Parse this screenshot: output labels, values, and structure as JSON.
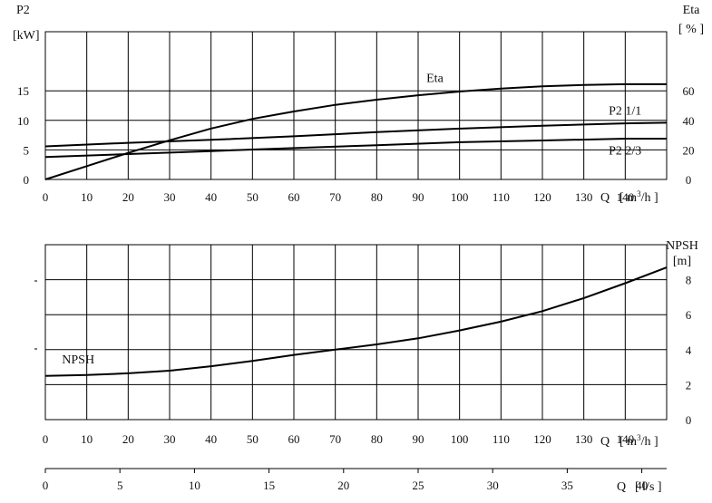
{
  "chart_data": [
    {
      "type": "line",
      "name": "power-efficiency",
      "left_axis": {
        "title": "P2",
        "unit": "[kW]",
        "range": [
          0,
          25
        ],
        "ticks": [
          0,
          5,
          10,
          15
        ]
      },
      "right_axis": {
        "title": "Eta",
        "unit": "[ % ]",
        "range": [
          0,
          100
        ],
        "ticks": [
          0,
          20,
          40,
          60
        ]
      },
      "x_axis": {
        "label_prefix": "Q",
        "label_unit": "[ m³/h ]",
        "range": [
          0,
          150
        ],
        "ticks": [
          0,
          10,
          20,
          30,
          40,
          50,
          60,
          70,
          80,
          90,
          100,
          110,
          120,
          130,
          140
        ]
      },
      "grid": true,
      "series": [
        {
          "name": "Eta",
          "axis": "right",
          "x": [
            0,
            10,
            20,
            30,
            40,
            50,
            60,
            70,
            80,
            90,
            100,
            110,
            120,
            130,
            140,
            150
          ],
          "y": [
            0,
            9,
            18,
            26.5,
            34.5,
            41,
            46,
            50.5,
            54,
            57,
            59.5,
            61.5,
            63,
            64,
            64.5,
            64.5
          ]
        },
        {
          "name": "P2  1/1",
          "axis": "left",
          "x": [
            0,
            20,
            40,
            60,
            80,
            100,
            120,
            140,
            150
          ],
          "y": [
            5.6,
            6.2,
            6.7,
            7.3,
            8.0,
            8.6,
            9.1,
            9.5,
            9.6
          ]
        },
        {
          "name": "P2  2/3",
          "axis": "left",
          "x": [
            0,
            20,
            40,
            60,
            80,
            100,
            120,
            140,
            150
          ],
          "y": [
            3.8,
            4.3,
            4.8,
            5.3,
            5.8,
            6.3,
            6.6,
            6.9,
            6.9
          ]
        }
      ]
    },
    {
      "type": "line",
      "name": "npsh",
      "right_axis": {
        "title": "NPSH",
        "unit": "[m]",
        "range": [
          0,
          10
        ],
        "ticks": [
          0,
          2,
          4,
          6,
          8
        ]
      },
      "x_axis": {
        "label_prefix": "Q",
        "label_unit": "[ m³/h ]",
        "range": [
          0,
          150
        ],
        "ticks": [
          0,
          10,
          20,
          30,
          40,
          50,
          60,
          70,
          80,
          90,
          100,
          110,
          120,
          130,
          140
        ]
      },
      "second_x_axis": {
        "label_prefix": "Q",
        "label_unit": "[ l/s ]",
        "range": [
          0,
          41.667
        ],
        "ticks": [
          0,
          5,
          10,
          15,
          20,
          25,
          30,
          35,
          40
        ]
      },
      "grid": true,
      "series": [
        {
          "name": "NPSH",
          "x": [
            0,
            10,
            20,
            30,
            40,
            50,
            60,
            70,
            80,
            90,
            100,
            110,
            120,
            130,
            140,
            150
          ],
          "y": [
            2.5,
            2.55,
            2.65,
            2.8,
            3.05,
            3.35,
            3.7,
            4.0,
            4.3,
            4.65,
            5.1,
            5.6,
            6.2,
            6.95,
            7.8,
            8.7
          ]
        }
      ]
    }
  ]
}
